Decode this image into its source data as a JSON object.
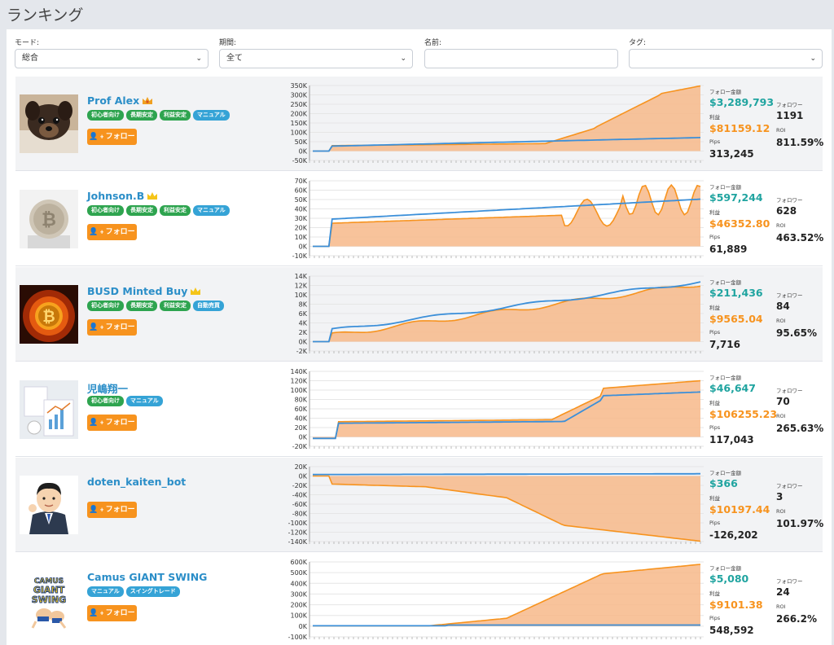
{
  "page": {
    "title": "ランキング"
  },
  "filters": {
    "mode": {
      "label": "モード:",
      "value": "総合"
    },
    "period": {
      "label": "期間:",
      "value": "全て"
    },
    "name": {
      "label": "名前:",
      "value": ""
    },
    "tag": {
      "label": "タグ:",
      "value": ""
    }
  },
  "stat_labels": {
    "follow_amount": "フォロー金額",
    "profit": "利益",
    "pips": "Pips",
    "followers": "フォロワー",
    "roi": "ROI"
  },
  "follow_label": "フォロー",
  "colors": {
    "name": "#2b8ec8",
    "follow_button": "#f7931e",
    "follow_amount": "#20a4a0",
    "profit": "#f7931e",
    "tag_green": "#2ea44f",
    "tag_blue": "#35a3d6",
    "series_pips": "#f7931e",
    "series_profit": "#3b8fd9"
  },
  "traders": [
    {
      "name": "Prof Alex",
      "crown": "crown-orange-icon",
      "avatar": "puppy-photo",
      "tags": [
        {
          "label": "初心者向け",
          "color": "green"
        },
        {
          "label": "長期安定",
          "color": "green"
        },
        {
          "label": "利益安定",
          "color": "green"
        },
        {
          "label": "マニュアル",
          "color": "blue"
        }
      ],
      "follow_amount": "$3,289,793",
      "profit": "$81159.12",
      "pips": "313,245",
      "followers": "1191",
      "roi": "811.59%",
      "chart": {
        "yticks": [
          "350K",
          "300K",
          "250K",
          "200K",
          "150K",
          "100K",
          "50K",
          "0K",
          "-50K"
        ],
        "ymin": -50000,
        "ymax": 350000
      }
    },
    {
      "name": "Johnson.B",
      "crown": "crown-gold-icon",
      "avatar": "bitcoin-coin-photo",
      "tags": [
        {
          "label": "初心者向け",
          "color": "green"
        },
        {
          "label": "長期安定",
          "color": "green"
        },
        {
          "label": "利益安定",
          "color": "green"
        },
        {
          "label": "マニュアル",
          "color": "blue"
        }
      ],
      "follow_amount": "$597,244",
      "profit": "$46352.80",
      "pips": "61,889",
      "followers": "628",
      "roi": "463.52%",
      "chart": {
        "yticks": [
          "70K",
          "60K",
          "50K",
          "40K",
          "30K",
          "20K",
          "10K",
          "0K",
          "-10K"
        ],
        "ymin": -10000,
        "ymax": 70000
      }
    },
    {
      "name": "BUSD Minted Buy",
      "crown": "crown-gold-icon",
      "avatar": "bitcoin-fire-photo",
      "tags": [
        {
          "label": "初心者向け",
          "color": "green"
        },
        {
          "label": "長期安定",
          "color": "green"
        },
        {
          "label": "利益安定",
          "color": "green"
        },
        {
          "label": "自動売買",
          "color": "blue"
        }
      ],
      "follow_amount": "$211,436",
      "profit": "$9565.04",
      "pips": "7,716",
      "followers": "84",
      "roi": "95.65%",
      "chart": {
        "yticks": [
          "14K",
          "12K",
          "10K",
          "8K",
          "6K",
          "4K",
          "2K",
          "0K",
          "-2K"
        ],
        "ymin": -2000,
        "ymax": 14000
      }
    },
    {
      "name": "児嶋翔一",
      "crown": "",
      "avatar": "desk-papers-photo",
      "tags": [
        {
          "label": "初心者向け",
          "color": "green"
        },
        {
          "label": "マニュアル",
          "color": "blue"
        }
      ],
      "follow_amount": "$46,647",
      "profit": "$106255.23",
      "pips": "117,043",
      "followers": "70",
      "roi": "265.63%",
      "chart": {
        "yticks": [
          "140K",
          "120K",
          "100K",
          "80K",
          "60K",
          "40K",
          "20K",
          "0K",
          "-20K"
        ],
        "ymin": -20000,
        "ymax": 140000
      }
    },
    {
      "name": "doten_kaiten_bot",
      "crown": "",
      "avatar": "businessman-illustration",
      "tags": [],
      "follow_amount": "$366",
      "profit": "$10197.44",
      "pips": "-126,202",
      "followers": "3",
      "roi": "101.97%",
      "chart": {
        "yticks": [
          "20K",
          "0K",
          "-20K",
          "-40K",
          "-60K",
          "-80K",
          "-100K",
          "-120K",
          "-140K"
        ],
        "ymin": -140000,
        "ymax": 20000
      }
    },
    {
      "name": "Camus GIANT SWING",
      "crown": "",
      "avatar": "wrestling-illustration",
      "tags": [
        {
          "label": "マニュアル",
          "color": "blue"
        },
        {
          "label": "スイングトレード",
          "color": "blue"
        }
      ],
      "follow_amount": "$5,080",
      "profit": "$9101.38",
      "pips": "548,592",
      "followers": "24",
      "roi": "266.2%",
      "chart": {
        "yticks": [
          "600K",
          "500K",
          "400K",
          "300K",
          "200K",
          "100K",
          "0K",
          "-100K"
        ],
        "ymin": -100000,
        "ymax": 600000
      }
    }
  ]
}
